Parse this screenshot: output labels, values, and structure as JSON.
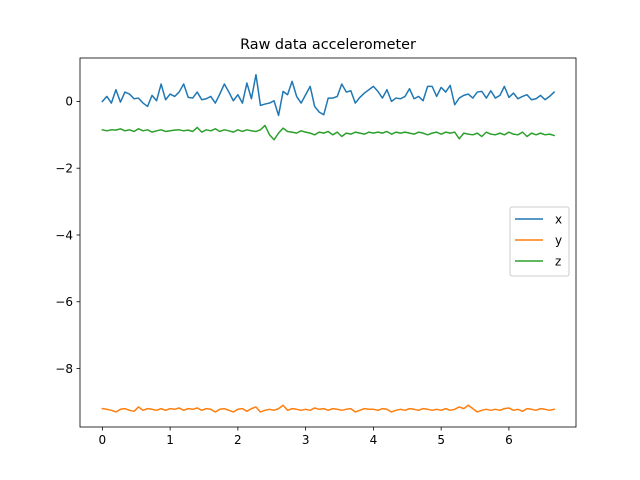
{
  "chart_data": {
    "type": "line",
    "title": "Raw data accelerometer",
    "xlabel": "",
    "ylabel": "",
    "xlim": [
      -0.33,
      6.99
    ],
    "ylim": [
      -9.75,
      1.3
    ],
    "xticks": [
      0,
      1,
      2,
      3,
      4,
      5,
      6
    ],
    "yticks": [
      0,
      -2,
      -4,
      -6,
      -8
    ],
    "ytick_labels": [
      "0",
      "−2",
      "−4",
      "−6",
      "−8"
    ],
    "grid": false,
    "legend_position": "center-right",
    "x": [
      0.0,
      0.067,
      0.133,
      0.2,
      0.267,
      0.333,
      0.4,
      0.467,
      0.533,
      0.6,
      0.667,
      0.733,
      0.8,
      0.867,
      0.933,
      1.0,
      1.067,
      1.133,
      1.2,
      1.267,
      1.333,
      1.4,
      1.467,
      1.533,
      1.6,
      1.667,
      1.733,
      1.8,
      1.867,
      1.933,
      2.0,
      2.067,
      2.133,
      2.2,
      2.267,
      2.333,
      2.4,
      2.467,
      2.533,
      2.6,
      2.667,
      2.733,
      2.8,
      2.867,
      2.933,
      3.0,
      3.067,
      3.133,
      3.2,
      3.267,
      3.333,
      3.4,
      3.467,
      3.533,
      3.6,
      3.667,
      3.733,
      3.8,
      3.867,
      3.933,
      4.0,
      4.067,
      4.133,
      4.2,
      4.267,
      4.333,
      4.4,
      4.467,
      4.533,
      4.6,
      4.667,
      4.733,
      4.8,
      4.867,
      4.933,
      5.0,
      5.067,
      5.133,
      5.2,
      5.267,
      5.333,
      5.4,
      5.467,
      5.533,
      5.6,
      5.667,
      5.733,
      5.8,
      5.867,
      5.933,
      6.0,
      6.067,
      6.133,
      6.2,
      6.267,
      6.333,
      6.4,
      6.467,
      6.533,
      6.6,
      6.667
    ],
    "series": [
      {
        "name": "x",
        "color": "#1f77b4",
        "values": [
          0.0,
          0.15,
          -0.05,
          0.35,
          -0.02,
          0.28,
          0.22,
          0.08,
          0.1,
          -0.05,
          -0.15,
          0.18,
          0.02,
          0.52,
          0.05,
          0.22,
          0.15,
          0.28,
          0.52,
          0.12,
          0.1,
          0.28,
          0.05,
          0.08,
          0.15,
          -0.05,
          0.22,
          0.52,
          0.28,
          0.02,
          0.2,
          -0.05,
          0.55,
          0.08,
          0.8,
          -0.12,
          -0.08,
          -0.05,
          0.02,
          -0.42,
          0.3,
          0.2,
          0.6,
          0.15,
          -0.05,
          0.2,
          0.45,
          -0.15,
          -0.32,
          -0.4,
          0.1,
          0.1,
          0.15,
          0.52,
          0.28,
          0.32,
          -0.05,
          0.12,
          0.25,
          0.35,
          0.45,
          0.3,
          0.1,
          0.35,
          0.0,
          0.1,
          0.08,
          0.15,
          0.38,
          0.08,
          0.15,
          0.02,
          0.45,
          0.45,
          0.15,
          0.42,
          0.28,
          0.48,
          -0.1,
          0.1,
          0.18,
          0.22,
          0.1,
          0.28,
          0.3,
          0.1,
          0.32,
          0.1,
          0.18,
          0.45,
          0.12,
          0.25,
          0.08,
          0.15,
          0.2,
          0.05,
          0.08,
          0.18,
          0.05,
          0.15,
          0.28
        ]
      },
      {
        "name": "y",
        "color": "#ff7f0e",
        "values": [
          -9.2,
          -9.22,
          -9.25,
          -9.3,
          -9.22,
          -9.2,
          -9.25,
          -9.28,
          -9.15,
          -9.25,
          -9.2,
          -9.22,
          -9.25,
          -9.2,
          -9.25,
          -9.2,
          -9.22,
          -9.18,
          -9.25,
          -9.2,
          -9.22,
          -9.18,
          -9.25,
          -9.2,
          -9.22,
          -9.3,
          -9.22,
          -9.2,
          -9.25,
          -9.3,
          -9.22,
          -9.2,
          -9.28,
          -9.2,
          -9.15,
          -9.3,
          -9.25,
          -9.22,
          -9.25,
          -9.2,
          -9.1,
          -9.25,
          -9.2,
          -9.22,
          -9.25,
          -9.22,
          -9.25,
          -9.18,
          -9.22,
          -9.2,
          -9.25,
          -9.2,
          -9.22,
          -9.25,
          -9.22,
          -9.2,
          -9.3,
          -9.25,
          -9.2,
          -9.22,
          -9.22,
          -9.25,
          -9.2,
          -9.22,
          -9.3,
          -9.25,
          -9.22,
          -9.25,
          -9.2,
          -9.22,
          -9.25,
          -9.2,
          -9.22,
          -9.25,
          -9.22,
          -9.25,
          -9.2,
          -9.25,
          -9.22,
          -9.15,
          -9.2,
          -9.1,
          -9.2,
          -9.3,
          -9.25,
          -9.22,
          -9.25,
          -9.22,
          -9.25,
          -9.2,
          -9.18,
          -9.25,
          -9.22,
          -9.28,
          -9.2,
          -9.22,
          -9.25,
          -9.2,
          -9.22,
          -9.25,
          -9.22
        ]
      },
      {
        "name": "z",
        "color": "#2ca02c",
        "values": [
          -0.85,
          -0.88,
          -0.85,
          -0.86,
          -0.82,
          -0.88,
          -0.85,
          -0.9,
          -0.82,
          -0.88,
          -0.85,
          -0.92,
          -0.88,
          -0.85,
          -0.9,
          -0.88,
          -0.86,
          -0.85,
          -0.88,
          -0.86,
          -0.9,
          -0.78,
          -0.92,
          -0.85,
          -0.88,
          -0.82,
          -0.9,
          -0.85,
          -0.88,
          -0.92,
          -0.85,
          -0.9,
          -0.85,
          -0.88,
          -0.9,
          -0.85,
          -0.72,
          -1.0,
          -1.15,
          -0.95,
          -0.8,
          -0.9,
          -0.92,
          -0.95,
          -0.88,
          -0.92,
          -0.95,
          -1.0,
          -0.92,
          -0.95,
          -0.9,
          -1.0,
          -0.92,
          -1.05,
          -0.95,
          -0.98,
          -0.92,
          -0.95,
          -0.98,
          -0.92,
          -0.95,
          -0.92,
          -0.95,
          -0.9,
          -0.98,
          -0.92,
          -0.95,
          -0.92,
          -0.95,
          -0.98,
          -0.92,
          -0.95,
          -1.0,
          -0.95,
          -0.92,
          -0.98,
          -0.92,
          -0.95,
          -0.92,
          -1.12,
          -0.95,
          -0.98,
          -1.0,
          -0.95,
          -1.05,
          -0.92,
          -0.98,
          -1.0,
          -0.95,
          -1.0,
          -0.92,
          -0.98,
          -1.0,
          -0.92,
          -1.05,
          -0.95,
          -1.0,
          -0.95,
          -1.0,
          -0.98,
          -1.02
        ]
      }
    ]
  }
}
